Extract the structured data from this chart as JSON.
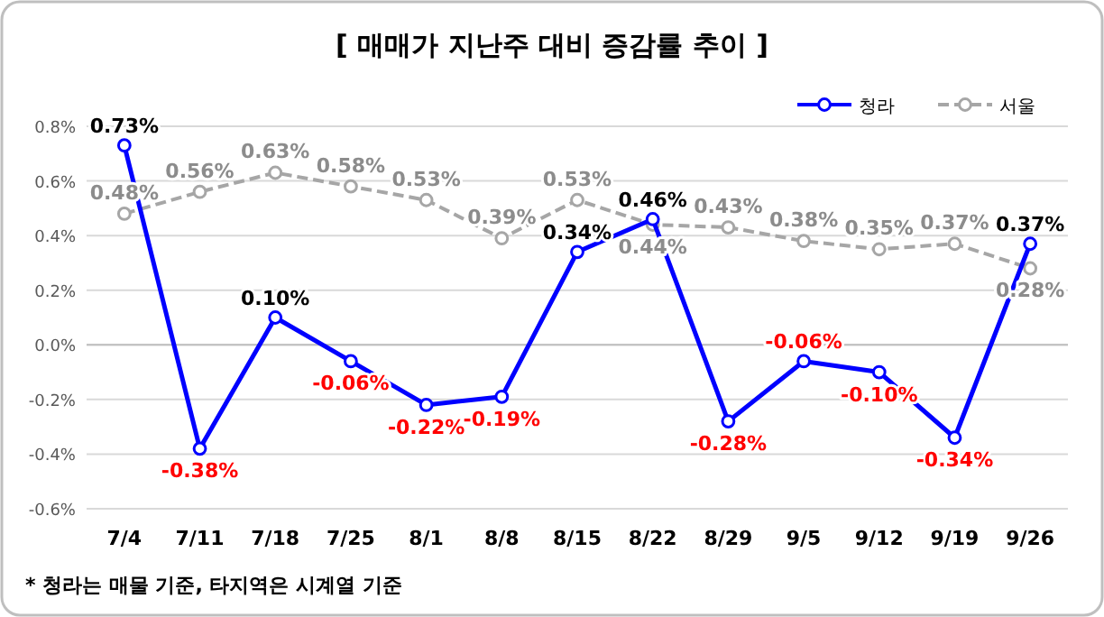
{
  "chart_data": {
    "type": "line",
    "title": "[ 매매가 지난주 대비 증감률 추이 ]",
    "categories": [
      "7/4",
      "7/11",
      "7/18",
      "7/25",
      "8/1",
      "8/8",
      "8/15",
      "8/22",
      "8/29",
      "9/5",
      "9/12",
      "9/19",
      "9/26"
    ],
    "series": [
      {
        "name": "청라",
        "color": "#0000ff",
        "line_style": "solid",
        "values": [
          0.73,
          -0.38,
          0.1,
          -0.06,
          -0.22,
          -0.19,
          0.34,
          0.46,
          -0.28,
          -0.06,
          -0.1,
          -0.34,
          0.37
        ],
        "value_labels": [
          "0.73%",
          "-0.38%",
          "0.10%",
          "-0.06%",
          "-0.22%",
          "-0.19%",
          "0.34%",
          "0.46%",
          "-0.28%",
          "-0.06%",
          "-0.10%",
          "-0.34%",
          "0.37%"
        ]
      },
      {
        "name": "서울",
        "color": "#a6a6a6",
        "line_style": "dashed",
        "values": [
          0.48,
          0.56,
          0.63,
          0.58,
          0.53,
          0.39,
          0.53,
          0.44,
          0.43,
          0.38,
          0.35,
          0.37,
          0.28
        ],
        "value_labels": [
          "0.48%",
          "0.56%",
          "0.63%",
          "0.58%",
          "0.53%",
          "0.39%",
          "0.53%",
          "0.44%",
          "0.43%",
          "0.38%",
          "0.35%",
          "0.37%",
          "0.28%"
        ]
      }
    ],
    "ylim": [
      -0.6,
      0.8
    ],
    "yticks": [
      {
        "value": -0.6,
        "label": "-0.6%"
      },
      {
        "value": -0.4,
        "label": "-0.4%"
      },
      {
        "value": -0.2,
        "label": "-0.2%"
      },
      {
        "value": 0,
        "label": "0.0%"
      },
      {
        "value": 0.2,
        "label": "0.2%"
      },
      {
        "value": 0.4,
        "label": "0.4%"
      },
      {
        "value": 0.6,
        "label": "0.6%"
      },
      {
        "value": 0.8,
        "label": "0.8%"
      }
    ],
    "grid": "y",
    "legend": "top right",
    "marker": "circle",
    "annotations": [
      "* 청라는 매물 기준, 타지역은 시계열 기준"
    ]
  }
}
